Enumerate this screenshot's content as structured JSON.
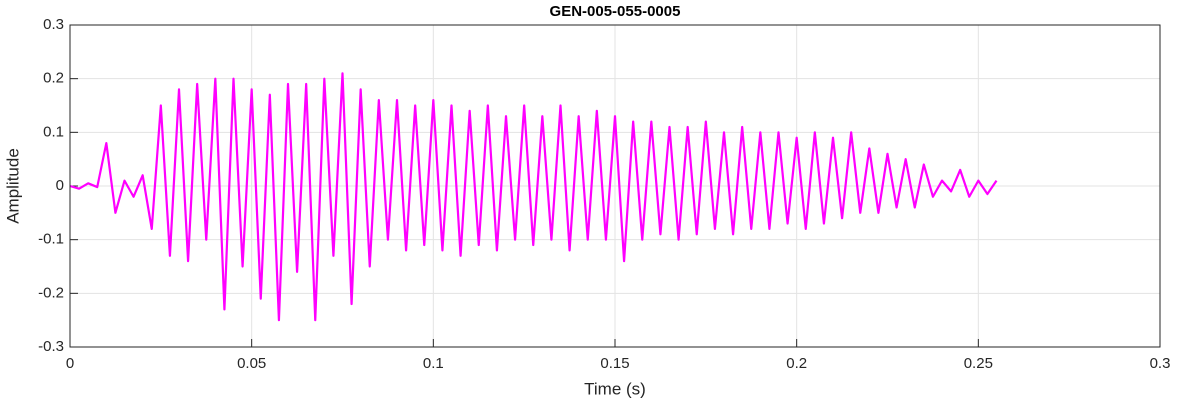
{
  "chart_data": {
    "type": "line",
    "title": "GEN-005-055-0005",
    "x_label": "Time (s)",
    "y_label": "Amplitude",
    "xlim": [
      0,
      0.3
    ],
    "ylim": [
      -0.3,
      0.3
    ],
    "xticks": [
      0,
      0.05,
      0.1,
      0.15,
      0.2,
      0.25,
      0.3
    ],
    "yticks": [
      -0.3,
      -0.2,
      -0.1,
      0,
      0.1,
      0.2,
      0.3
    ],
    "grid": true,
    "x": [
      0,
      0.0025,
      0.005,
      0.0075,
      0.01,
      0.0125,
      0.015,
      0.0175,
      0.02,
      0.0225,
      0.025,
      0.0275,
      0.03,
      0.0325,
      0.035,
      0.0375,
      0.04,
      0.0425,
      0.045,
      0.0475,
      0.05,
      0.0525,
      0.055,
      0.0575,
      0.06,
      0.0625,
      0.065,
      0.0675,
      0.07,
      0.0725,
      0.075,
      0.0775,
      0.08,
      0.0825,
      0.085,
      0.0875,
      0.09,
      0.0925,
      0.095,
      0.0975,
      0.1,
      0.1025,
      0.105,
      0.1075,
      0.11,
      0.1125,
      0.115,
      0.1175,
      0.12,
      0.1225,
      0.125,
      0.1275,
      0.13,
      0.1325,
      0.135,
      0.1375,
      0.14,
      0.1425,
      0.145,
      0.1475,
      0.15,
      0.1525,
      0.155,
      0.1575,
      0.16,
      0.1625,
      0.165,
      0.1675,
      0.17,
      0.1725,
      0.175,
      0.1775,
      0.18,
      0.1825,
      0.185,
      0.1875,
      0.19,
      0.1925,
      0.195,
      0.1975,
      0.2,
      0.2025,
      0.205,
      0.2075,
      0.21,
      0.2125,
      0.215,
      0.2175,
      0.22,
      0.2225,
      0.225,
      0.2275,
      0.23,
      0.2325,
      0.235,
      0.2375,
      0.24,
      0.2425,
      0.245,
      0.2475,
      0.25,
      0.2525,
      0.255
    ],
    "series": [
      {
        "color": "#ff00ff",
        "values": [
          0,
          -0.005,
          0.005,
          -0.002,
          0.08,
          -0.05,
          0.01,
          -0.02,
          0.02,
          -0.08,
          0.15,
          -0.13,
          0.18,
          -0.14,
          0.19,
          -0.1,
          0.2,
          -0.23,
          0.2,
          -0.15,
          0.18,
          -0.21,
          0.17,
          -0.25,
          0.19,
          -0.16,
          0.19,
          -0.25,
          0.2,
          -0.13,
          0.21,
          -0.22,
          0.18,
          -0.15,
          0.16,
          -0.1,
          0.16,
          -0.12,
          0.15,
          -0.11,
          0.16,
          -0.12,
          0.15,
          -0.13,
          0.14,
          -0.11,
          0.15,
          -0.12,
          0.13,
          -0.1,
          0.15,
          -0.11,
          0.13,
          -0.1,
          0.15,
          -0.12,
          0.13,
          -0.1,
          0.14,
          -0.1,
          0.13,
          -0.14,
          0.12,
          -0.1,
          0.12,
          -0.09,
          0.11,
          -0.1,
          0.11,
          -0.09,
          0.12,
          -0.08,
          0.1,
          -0.09,
          0.11,
          -0.08,
          0.1,
          -0.08,
          0.1,
          -0.07,
          0.09,
          -0.08,
          0.1,
          -0.07,
          0.09,
          -0.06,
          0.1,
          -0.05,
          0.07,
          -0.05,
          0.06,
          -0.04,
          0.05,
          -0.04,
          0.04,
          -0.02,
          0.01,
          -0.01,
          0.03,
          -0.02,
          0.01,
          -0.015,
          0.01
        ]
      }
    ]
  }
}
